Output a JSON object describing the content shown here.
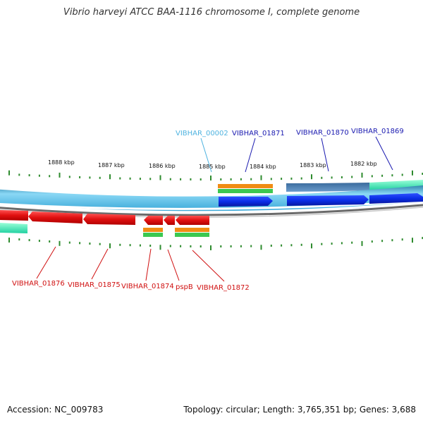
{
  "title": "Vibrio harveyi ATCC BAA-1116 chromosome I, complete genome",
  "footer": {
    "accession": "Accession: NC_009783",
    "topology": "Topology: circular; Length: 3,765,351 bp; Genes: 3,688"
  },
  "scale_labels": [
    "1888 kbp",
    "1887 kbp",
    "1886 kbp",
    "1885 kbp",
    "1884 kbp",
    "1883 kbp",
    "1882 kbp"
  ],
  "top_genes": [
    {
      "name": "VIBHAR_00002",
      "color": "#4fb3e0"
    },
    {
      "name": "VIBHAR_01871",
      "color": "#1a1ab0"
    },
    {
      "name": "VIBHAR_01870",
      "color": "#1a1ab0"
    },
    {
      "name": "VIBHAR_01869",
      "color": "#1a1ab0"
    }
  ],
  "bottom_genes": [
    {
      "name": "VIBHAR_01876",
      "color": "#d01010"
    },
    {
      "name": "VIBHAR_01875",
      "color": "#d01010"
    },
    {
      "name": "VIBHAR_01874",
      "color": "#d01010"
    },
    {
      "name": "pspB",
      "color": "#d01010"
    },
    {
      "name": "VIBHAR_01872",
      "color": "#d01010"
    }
  ],
  "colors": {
    "forward_gene": "#0a2ee6",
    "reverse_gene": "#e01010",
    "backbone_light": "#52c3f0",
    "backbone_dark": "#2a7fa8",
    "cds_orange": "#f08c14",
    "cds_green": "#3cc850",
    "ticks": "#2e8b2e"
  }
}
